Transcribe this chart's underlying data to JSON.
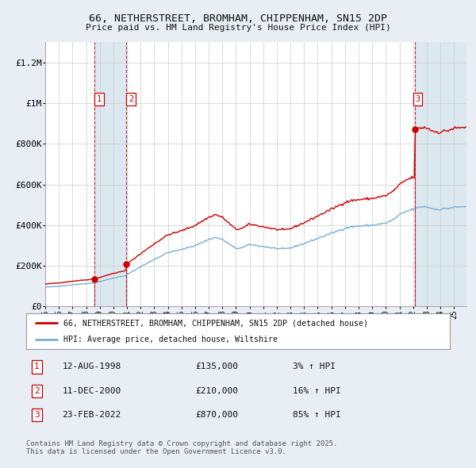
{
  "title_line1": "66, NETHERSTREET, BROMHAM, CHIPPENHAM, SN15 2DP",
  "title_line2": "Price paid vs. HM Land Registry's House Price Index (HPI)",
  "ylim": [
    0,
    1300000
  ],
  "yticks": [
    0,
    200000,
    400000,
    600000,
    800000,
    1000000,
    1200000
  ],
  "ytick_labels": [
    "£0",
    "£200K",
    "£400K",
    "£600K",
    "£800K",
    "£1M",
    "£1.2M"
  ],
  "background_color": "#e8eef4",
  "plot_bg_color": "#ffffff",
  "grid_color": "#cccccc",
  "red_line_color": "#cc0000",
  "blue_line_color": "#7bafd4",
  "shade_color": "#dce8f0",
  "trans_years": [
    1998.614,
    2000.948,
    2022.143
  ],
  "trans_prices": [
    135000,
    210000,
    870000
  ],
  "trans_labels": [
    "1",
    "2",
    "3"
  ],
  "legend_red": "66, NETHERSTREET, BROMHAM, CHIPPENHAM, SN15 2DP (detached house)",
  "legend_blue": "HPI: Average price, detached house, Wiltshire",
  "footer": "Contains HM Land Registry data © Crown copyright and database right 2025.\nThis data is licensed under the Open Government Licence v3.0.",
  "table_rows": [
    {
      "num": "1",
      "date": "12-AUG-1998",
      "price": "£135,000",
      "pct": "3% ↑ HPI"
    },
    {
      "num": "2",
      "date": "11-DEC-2000",
      "price": "£210,000",
      "pct": "16% ↑ HPI"
    },
    {
      "num": "3",
      "date": "23-FEB-2022",
      "price": "£870,000",
      "pct": "85% ↑ HPI"
    }
  ],
  "xstart": 1995.0,
  "xend": 2025.92
}
